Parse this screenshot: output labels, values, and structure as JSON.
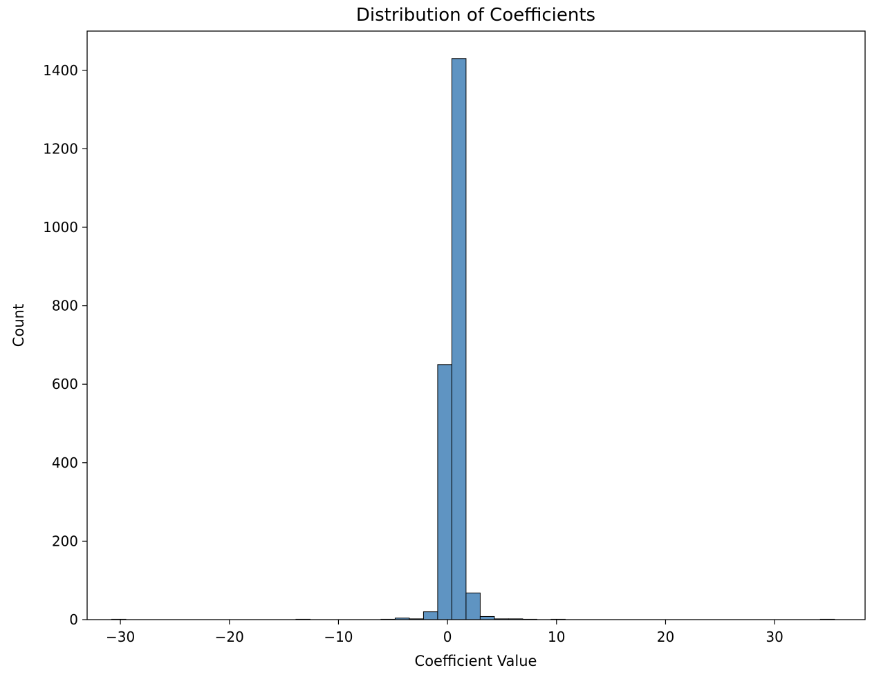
{
  "chart_data": {
    "type": "bar",
    "title": "Distribution of Coefficients",
    "xlabel": "Coefficient Value",
    "ylabel": "Count",
    "xlim": [
      -33.05,
      38.3
    ],
    "ylim": [
      0,
      1500
    ],
    "xticks": [
      -30,
      -20,
      -10,
      0,
      10,
      20,
      30
    ],
    "xtick_labels": [
      "−30",
      "−20",
      "−10",
      "0",
      "10",
      "20",
      "30"
    ],
    "yticks": [
      0,
      200,
      400,
      600,
      800,
      1000,
      1200,
      1400
    ],
    "ytick_labels": [
      "0",
      "200",
      "400",
      "600",
      "800",
      "1000",
      "1200",
      "1400"
    ],
    "bin_width": 1.3,
    "bar_color": "#5f94c2",
    "bins": [
      {
        "x0": -30.8,
        "count": 1
      },
      {
        "x0": -13.9,
        "count": 1
      },
      {
        "x0": -6.1,
        "count": 1
      },
      {
        "x0": -4.8,
        "count": 4
      },
      {
        "x0": -3.5,
        "count": 2
      },
      {
        "x0": -2.2,
        "count": 20
      },
      {
        "x0": -0.9,
        "count": 650
      },
      {
        "x0": 0.4,
        "count": 1430
      },
      {
        "x0": 1.7,
        "count": 68
      },
      {
        "x0": 3.0,
        "count": 8
      },
      {
        "x0": 4.3,
        "count": 2
      },
      {
        "x0": 5.6,
        "count": 2
      },
      {
        "x0": 6.9,
        "count": 1
      },
      {
        "x0": 9.5,
        "count": 1
      },
      {
        "x0": 34.2,
        "count": 1
      }
    ],
    "grid": false,
    "legend": "none"
  }
}
